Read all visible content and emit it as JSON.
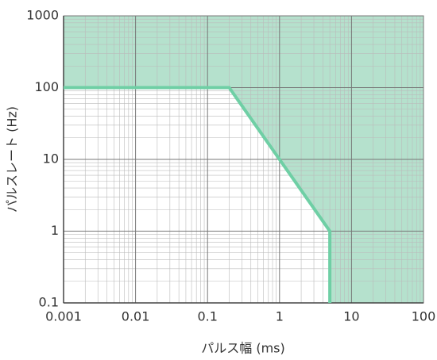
{
  "chart_data": {
    "type": "line",
    "xlabel": "パルス幅 (ms)",
    "ylabel": "パルスレート (Hz)",
    "x": [
      0.001,
      0.2,
      1,
      5,
      5
    ],
    "values": [
      100,
      100,
      10,
      1,
      0.1
    ],
    "color": "#6fcfa5",
    "fill_color": "#a8dcc4",
    "xscale": "log",
    "yscale": "log",
    "xlim": [
      0.001,
      100
    ],
    "ylim": [
      0.1,
      1000
    ],
    "xticks": [
      0.001,
      0.01,
      0.1,
      1,
      10,
      100
    ],
    "yticks": [
      0.1,
      1,
      10,
      100,
      1000
    ],
    "grid": true
  }
}
